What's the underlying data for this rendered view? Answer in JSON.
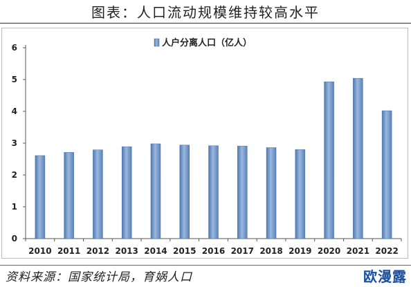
{
  "header": {
    "title": "图表：人口流动规模维持较高水平"
  },
  "chart_data": {
    "type": "bar",
    "categories": [
      "2010",
      "2011",
      "2012",
      "2013",
      "2014",
      "2015",
      "2016",
      "2017",
      "2018",
      "2019",
      "2020",
      "2021",
      "2022"
    ],
    "series": [
      {
        "name": "人户分离人口（亿人）",
        "values": [
          2.61,
          2.71,
          2.79,
          2.89,
          2.98,
          2.94,
          2.92,
          2.91,
          2.86,
          2.8,
          4.93,
          5.04,
          4.02
        ]
      }
    ],
    "ylim": [
      0,
      6
    ],
    "yticks": [
      0,
      1,
      2,
      3,
      4,
      5,
      6
    ],
    "legend_position": "top-center",
    "grid": false,
    "bar_color": "#6f94c4"
  },
  "footer": {
    "source": "资料来源：国家统计局，育娲人口",
    "watermark": "欧漫露"
  }
}
